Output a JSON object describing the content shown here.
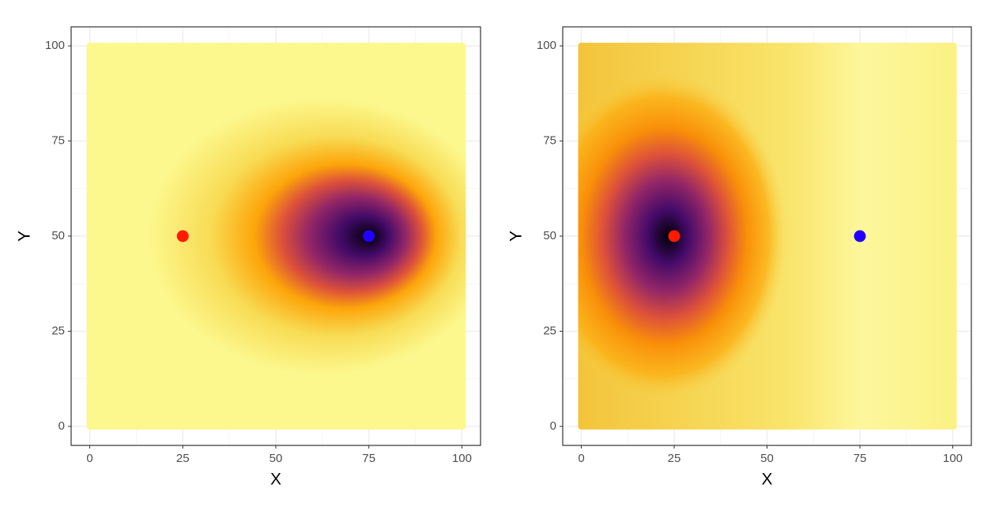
{
  "chart_data": [
    {
      "type": "scatter",
      "x_label": "X",
      "y_label": "Y",
      "x": [
        25,
        75
      ],
      "values": [
        50,
        50
      ],
      "colors": [
        "#ff1a00",
        "#2200ff"
      ],
      "xlim": [
        -5,
        105
      ],
      "ylim": [
        -5,
        105
      ],
      "xticks": [
        0,
        25,
        50,
        75,
        100
      ],
      "yticks": [
        0,
        25,
        50,
        75,
        100
      ],
      "grid": true
    },
    {
      "type": "scatter",
      "x_label": "X",
      "y_label": "Y",
      "x": [
        25,
        75
      ],
      "values": [
        50,
        50
      ],
      "colors": [
        "#ff1a00",
        "#2200ff"
      ],
      "xlim": [
        -5,
        105
      ],
      "ylim": [
        -5,
        105
      ],
      "xticks": [
        0,
        25,
        50,
        75,
        100
      ],
      "yticks": [
        0,
        25,
        50,
        75,
        100
      ],
      "grid": true
    }
  ]
}
